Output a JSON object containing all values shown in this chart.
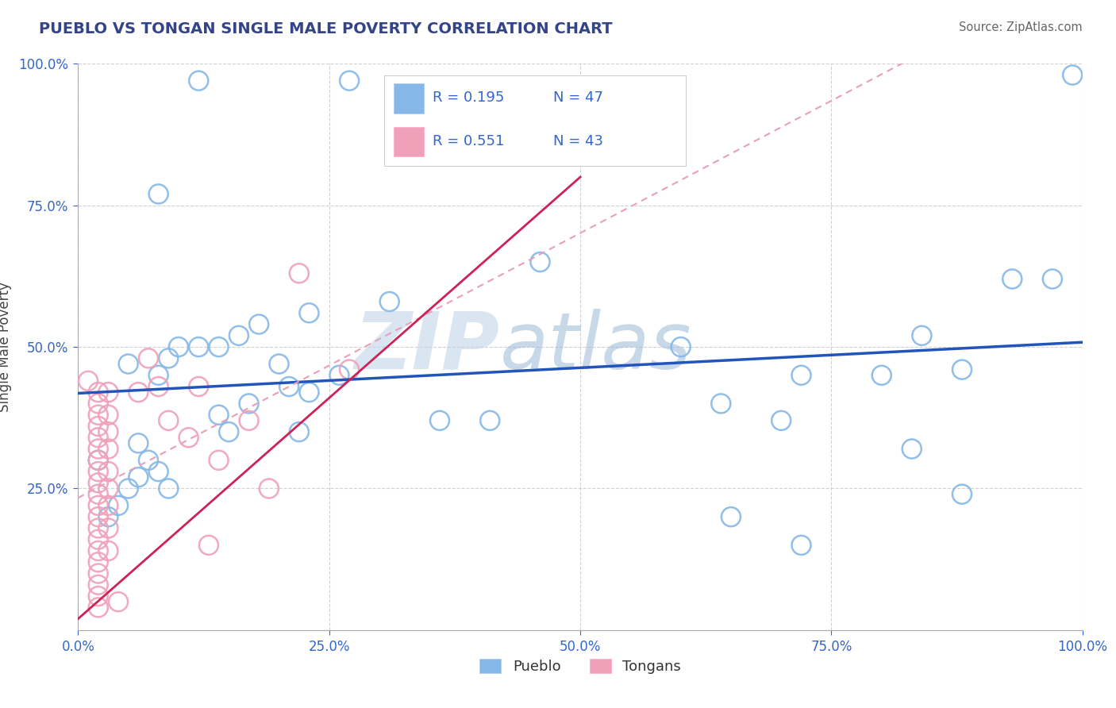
{
  "title": "PUEBLO VS TONGAN SINGLE MALE POVERTY CORRELATION CHART",
  "source": "Source: ZipAtlas.com",
  "ylabel": "Single Male Poverty",
  "xlim": [
    0.0,
    1.0
  ],
  "ylim": [
    0.0,
    1.0
  ],
  "xtick_positions": [
    0.0,
    0.25,
    0.5,
    0.75,
    1.0
  ],
  "ytick_positions": [
    0.25,
    0.5,
    0.75,
    1.0
  ],
  "pueblo_color": "#85B8E8",
  "tongan_color": "#F0A0B8",
  "pueblo_line_color": "#2255BB",
  "tongan_line_color": "#CC2255",
  "tongan_dash_color": "#E8A0B8",
  "legend_color": "#3366CC",
  "pueblo_R": 0.195,
  "pueblo_N": 47,
  "tongan_R": 0.551,
  "tongan_N": 43,
  "watermark_color": "#C8D8EE",
  "background_color": "#FFFFFF",
  "grid_color": "#CCCCCC",
  "pueblo_points": [
    [
      0.12,
      0.97
    ],
    [
      0.27,
      0.97
    ],
    [
      0.08,
      0.77
    ],
    [
      0.46,
      0.65
    ],
    [
      0.05,
      0.47
    ],
    [
      0.6,
      0.5
    ],
    [
      0.72,
      0.45
    ],
    [
      0.8,
      0.45
    ],
    [
      0.84,
      0.52
    ],
    [
      0.88,
      0.46
    ],
    [
      0.93,
      0.62
    ],
    [
      0.97,
      0.62
    ],
    [
      0.99,
      0.98
    ],
    [
      0.64,
      0.4
    ],
    [
      0.7,
      0.37
    ],
    [
      0.65,
      0.2
    ],
    [
      0.72,
      0.15
    ],
    [
      0.83,
      0.32
    ],
    [
      0.88,
      0.24
    ],
    [
      0.17,
      0.4
    ],
    [
      0.22,
      0.35
    ],
    [
      0.23,
      0.56
    ],
    [
      0.26,
      0.45
    ],
    [
      0.31,
      0.58
    ],
    [
      0.36,
      0.37
    ],
    [
      0.41,
      0.37
    ],
    [
      0.14,
      0.5
    ],
    [
      0.16,
      0.52
    ],
    [
      0.18,
      0.54
    ],
    [
      0.2,
      0.47
    ],
    [
      0.21,
      0.43
    ],
    [
      0.23,
      0.42
    ],
    [
      0.08,
      0.45
    ],
    [
      0.09,
      0.48
    ],
    [
      0.1,
      0.5
    ],
    [
      0.12,
      0.5
    ],
    [
      0.14,
      0.38
    ],
    [
      0.15,
      0.35
    ],
    [
      0.06,
      0.33
    ],
    [
      0.07,
      0.3
    ],
    [
      0.08,
      0.28
    ],
    [
      0.09,
      0.25
    ],
    [
      0.04,
      0.22
    ],
    [
      0.05,
      0.25
    ],
    [
      0.06,
      0.27
    ],
    [
      0.02,
      0.3
    ],
    [
      0.03,
      0.2
    ]
  ],
  "tongan_points": [
    [
      0.01,
      0.44
    ],
    [
      0.02,
      0.42
    ],
    [
      0.02,
      0.4
    ],
    [
      0.02,
      0.38
    ],
    [
      0.02,
      0.36
    ],
    [
      0.02,
      0.34
    ],
    [
      0.02,
      0.32
    ],
    [
      0.02,
      0.3
    ],
    [
      0.02,
      0.28
    ],
    [
      0.02,
      0.26
    ],
    [
      0.02,
      0.24
    ],
    [
      0.02,
      0.22
    ],
    [
      0.02,
      0.2
    ],
    [
      0.02,
      0.18
    ],
    [
      0.02,
      0.16
    ],
    [
      0.02,
      0.14
    ],
    [
      0.02,
      0.12
    ],
    [
      0.02,
      0.1
    ],
    [
      0.02,
      0.08
    ],
    [
      0.02,
      0.06
    ],
    [
      0.02,
      0.04
    ],
    [
      0.03,
      0.42
    ],
    [
      0.03,
      0.38
    ],
    [
      0.03,
      0.35
    ],
    [
      0.03,
      0.32
    ],
    [
      0.03,
      0.28
    ],
    [
      0.03,
      0.25
    ],
    [
      0.03,
      0.22
    ],
    [
      0.03,
      0.18
    ],
    [
      0.03,
      0.14
    ],
    [
      0.07,
      0.48
    ],
    [
      0.08,
      0.43
    ],
    [
      0.09,
      0.37
    ],
    [
      0.11,
      0.34
    ],
    [
      0.12,
      0.43
    ],
    [
      0.14,
      0.3
    ],
    [
      0.06,
      0.42
    ],
    [
      0.17,
      0.37
    ],
    [
      0.19,
      0.25
    ],
    [
      0.22,
      0.63
    ],
    [
      0.27,
      0.46
    ],
    [
      0.13,
      0.15
    ],
    [
      0.04,
      0.05
    ]
  ]
}
